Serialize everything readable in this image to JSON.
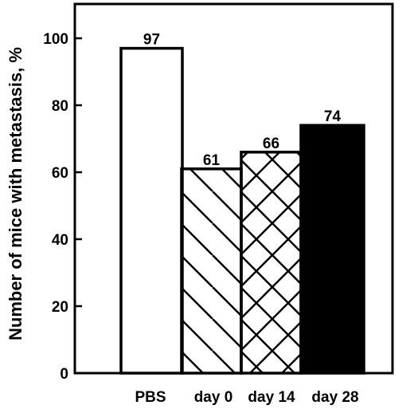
{
  "chart_data": {
    "type": "bar",
    "title": "",
    "xlabel": "",
    "ylabel": "Number of mice with metastasis, %",
    "ylim": [
      0,
      110
    ],
    "yticks": [
      0,
      20,
      40,
      60,
      80,
      100
    ],
    "grid": false,
    "categories": [
      "PBS",
      "day 0",
      "day 14",
      "day 28"
    ],
    "values": [
      97,
      61,
      66,
      74
    ],
    "value_labels": [
      "97",
      "61",
      "66",
      "74"
    ],
    "fills": [
      "white",
      "diagonal-hatch",
      "cross-hatch",
      "black"
    ],
    "colors": {
      "stroke": "#000000",
      "solid": "#000000",
      "empty": "#ffffff"
    }
  }
}
